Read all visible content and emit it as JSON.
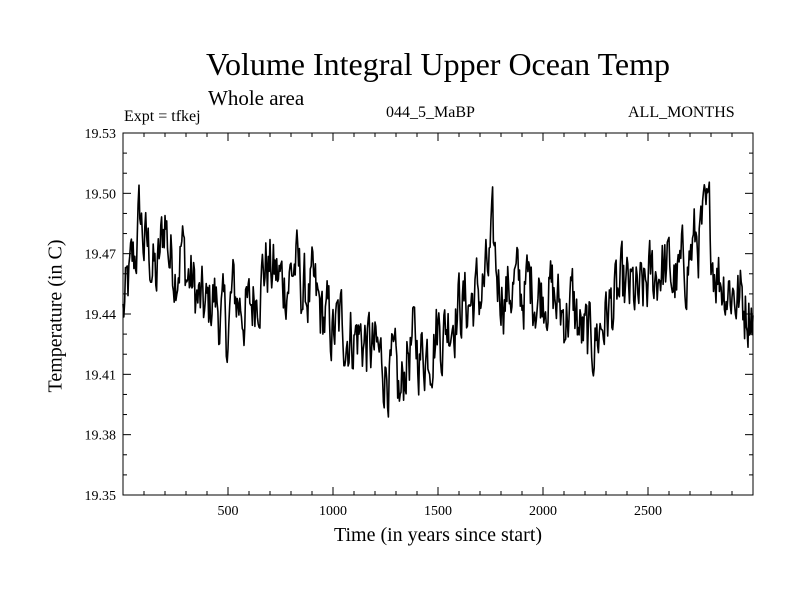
{
  "header": {
    "title": "Volume Integral Upper Ocean Temp",
    "subtitle": "Whole area",
    "experiment": "Expt = tfkej",
    "run_name": "044_5_MaBP",
    "months": "ALL_MONTHS"
  },
  "chart_data": {
    "type": "line",
    "title": "Volume Integral Upper Ocean Temp",
    "subtitle": "Whole area",
    "xlabel": "Time (in years since start)",
    "ylabel": "Temperature (in C)",
    "xlim": [
      0,
      3000
    ],
    "ylim": [
      19.35,
      19.53
    ],
    "xticks": [
      500,
      1000,
      1500,
      2000,
      2500
    ],
    "xtick_labels": [
      "500",
      "1000",
      "1500",
      "2000",
      "2500"
    ],
    "yticks": [
      19.35,
      19.38,
      19.41,
      19.44,
      19.47,
      19.5,
      19.53
    ],
    "ytick_labels": [
      "19.35",
      "19.38",
      "19.41",
      "19.44",
      "19.47",
      "19.50",
      "19.53"
    ],
    "grid": false,
    "line_color": "#000000",
    "series": [
      {
        "values_note_x_start": 0,
        "x": [
          0,
          30,
          60,
          80,
          100,
          130,
          160,
          190,
          200,
          220,
          250,
          280,
          300,
          330,
          360,
          400,
          430,
          460,
          500,
          520,
          560,
          600,
          640,
          680,
          720,
          760,
          800,
          820,
          860,
          900,
          940,
          980,
          1000,
          1040,
          1080,
          1120,
          1160,
          1200,
          1240,
          1280,
          1300,
          1320,
          1350,
          1380,
          1420,
          1460,
          1500,
          1520,
          1560,
          1600,
          1640,
          1700,
          1740,
          1760,
          1780,
          1820,
          1860,
          1900,
          1940,
          1980,
          2020,
          2060,
          2100,
          2140,
          2180,
          2220,
          2260,
          2300,
          2340,
          2380,
          2420,
          2460,
          2500,
          2540,
          2560,
          2600,
          2640,
          2680,
          2720,
          2760,
          2790,
          2810,
          2840,
          2880,
          2920,
          2960,
          3000
        ],
        "y": [
          19.44,
          19.455,
          19.47,
          19.49,
          19.475,
          19.47,
          19.455,
          19.48,
          19.49,
          19.47,
          19.465,
          19.475,
          19.46,
          19.455,
          19.445,
          19.44,
          19.45,
          19.44,
          19.43,
          19.45,
          19.445,
          19.44,
          19.455,
          19.465,
          19.46,
          19.455,
          19.46,
          19.465,
          19.45,
          19.45,
          19.44,
          19.435,
          19.43,
          19.435,
          19.43,
          19.43,
          19.425,
          19.42,
          19.415,
          19.41,
          19.405,
          19.395,
          19.42,
          19.425,
          19.42,
          19.425,
          19.435,
          19.43,
          19.44,
          19.445,
          19.445,
          19.45,
          19.46,
          19.475,
          19.46,
          19.45,
          19.455,
          19.45,
          19.455,
          19.45,
          19.455,
          19.445,
          19.44,
          19.445,
          19.43,
          19.425,
          19.43,
          19.44,
          19.445,
          19.45,
          19.45,
          19.445,
          19.455,
          19.46,
          19.465,
          19.46,
          19.455,
          19.465,
          19.475,
          19.48,
          19.485,
          19.47,
          19.46,
          19.455,
          19.45,
          19.445,
          19.445
        ]
      }
    ]
  }
}
